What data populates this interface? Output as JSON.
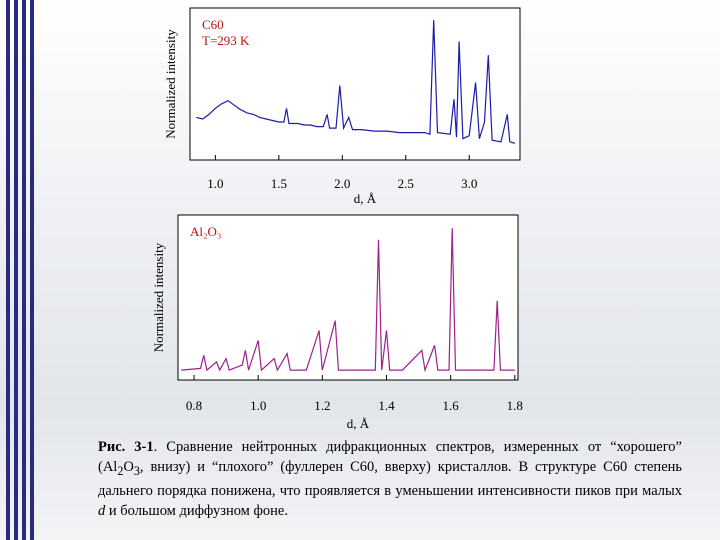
{
  "chart_data": [
    {
      "type": "line",
      "annotations": [
        "C60",
        "T=293 K"
      ],
      "xlabel": "d, Å",
      "ylabel": "Normalized intensity",
      "xlim": [
        0.8,
        3.4
      ],
      "ylim": [
        0,
        100
      ],
      "xticks": [
        {
          "value": 1,
          "label": "1.0"
        },
        {
          "value": 1.5,
          "label": "1.5"
        },
        {
          "value": 2,
          "label": "2.0"
        },
        {
          "value": 2.5,
          "label": "2.5"
        },
        {
          "value": 3,
          "label": "3.0"
        }
      ],
      "x": [
        0.85,
        0.9,
        0.95,
        1.0,
        1.05,
        1.1,
        1.15,
        1.2,
        1.25,
        1.3,
        1.35,
        1.4,
        1.45,
        1.5,
        1.54,
        1.56,
        1.58,
        1.65,
        1.7,
        1.75,
        1.8,
        1.85,
        1.88,
        1.9,
        1.95,
        1.98,
        2.01,
        2.05,
        2.08,
        2.15,
        2.25,
        2.35,
        2.45,
        2.55,
        2.65,
        2.69,
        2.72,
        2.75,
        2.85,
        2.88,
        2.9,
        2.92,
        2.95,
        3.0,
        3.05,
        3.08,
        3.12,
        3.15,
        3.18,
        3.25,
        3.3,
        3.32,
        3.36
      ],
      "series": [
        {
          "color": "#1c1ca8",
          "values": [
            28,
            27,
            30,
            34,
            37,
            39,
            36,
            33,
            31,
            30,
            28,
            27,
            26,
            25,
            25,
            34,
            24,
            24,
            23,
            23,
            22,
            22,
            30,
            21,
            21,
            49,
            21,
            28,
            20,
            20,
            19,
            19,
            18,
            18,
            18,
            17,
            92,
            18,
            17,
            40,
            15,
            78,
            14,
            16,
            51,
            14,
            25,
            69,
            13,
            12,
            30,
            12,
            11
          ]
        }
      ]
    },
    {
      "type": "line",
      "annotations": [
        "Al₂O₃"
      ],
      "xlabel": "d, Å",
      "ylabel": "Normalized intensity",
      "xlim": [
        0.75,
        1.81
      ],
      "ylim": [
        0,
        100
      ],
      "xticks": [
        {
          "value": 0.8,
          "label": "0.8"
        },
        {
          "value": 1,
          "label": "1.0"
        },
        {
          "value": 1.2,
          "label": "1.2"
        },
        {
          "value": 1.4,
          "label": "1.4"
        },
        {
          "value": 1.6,
          "label": "1.6"
        },
        {
          "value": 1.8,
          "label": "1.8"
        }
      ],
      "x": [
        0.76,
        0.82,
        0.83,
        0.84,
        0.87,
        0.88,
        0.9,
        0.91,
        0.95,
        0.96,
        0.97,
        1.0,
        1.01,
        1.05,
        1.06,
        1.09,
        1.1,
        1.15,
        1.19,
        1.2,
        1.24,
        1.25,
        1.3,
        1.365,
        1.375,
        1.385,
        1.4,
        1.41,
        1.45,
        1.51,
        1.52,
        1.55,
        1.56,
        1.595,
        1.605,
        1.615,
        1.65,
        1.735,
        1.745,
        1.755,
        1.8
      ],
      "series": [
        {
          "color": "#a0208c",
          "values": [
            6,
            7,
            15,
            6,
            11,
            6,
            13,
            6,
            9,
            18,
            6,
            24,
            6,
            13,
            6,
            16,
            6,
            6,
            30,
            6,
            36,
            6,
            6,
            6,
            85,
            6,
            30,
            6,
            6,
            18,
            6,
            21,
            6,
            6,
            92,
            6,
            6,
            6,
            48,
            6,
            6
          ]
        }
      ]
    }
  ],
  "caption": [
    "Рис. 3-1",
    ". Сравнение нейтронных дифракционных спектров, измеренных от “хорошего” (Al",
    "2",
    "O",
    "3",
    ", внизу) и “плохого” (фуллерен С60, вверху) кристаллов. В структуре С60 степень дальнего порядка понижена, что проявляется в уменьшении интенсивности пиков при малых ",
    "d",
    " и большом диффузном фоне."
  ]
}
